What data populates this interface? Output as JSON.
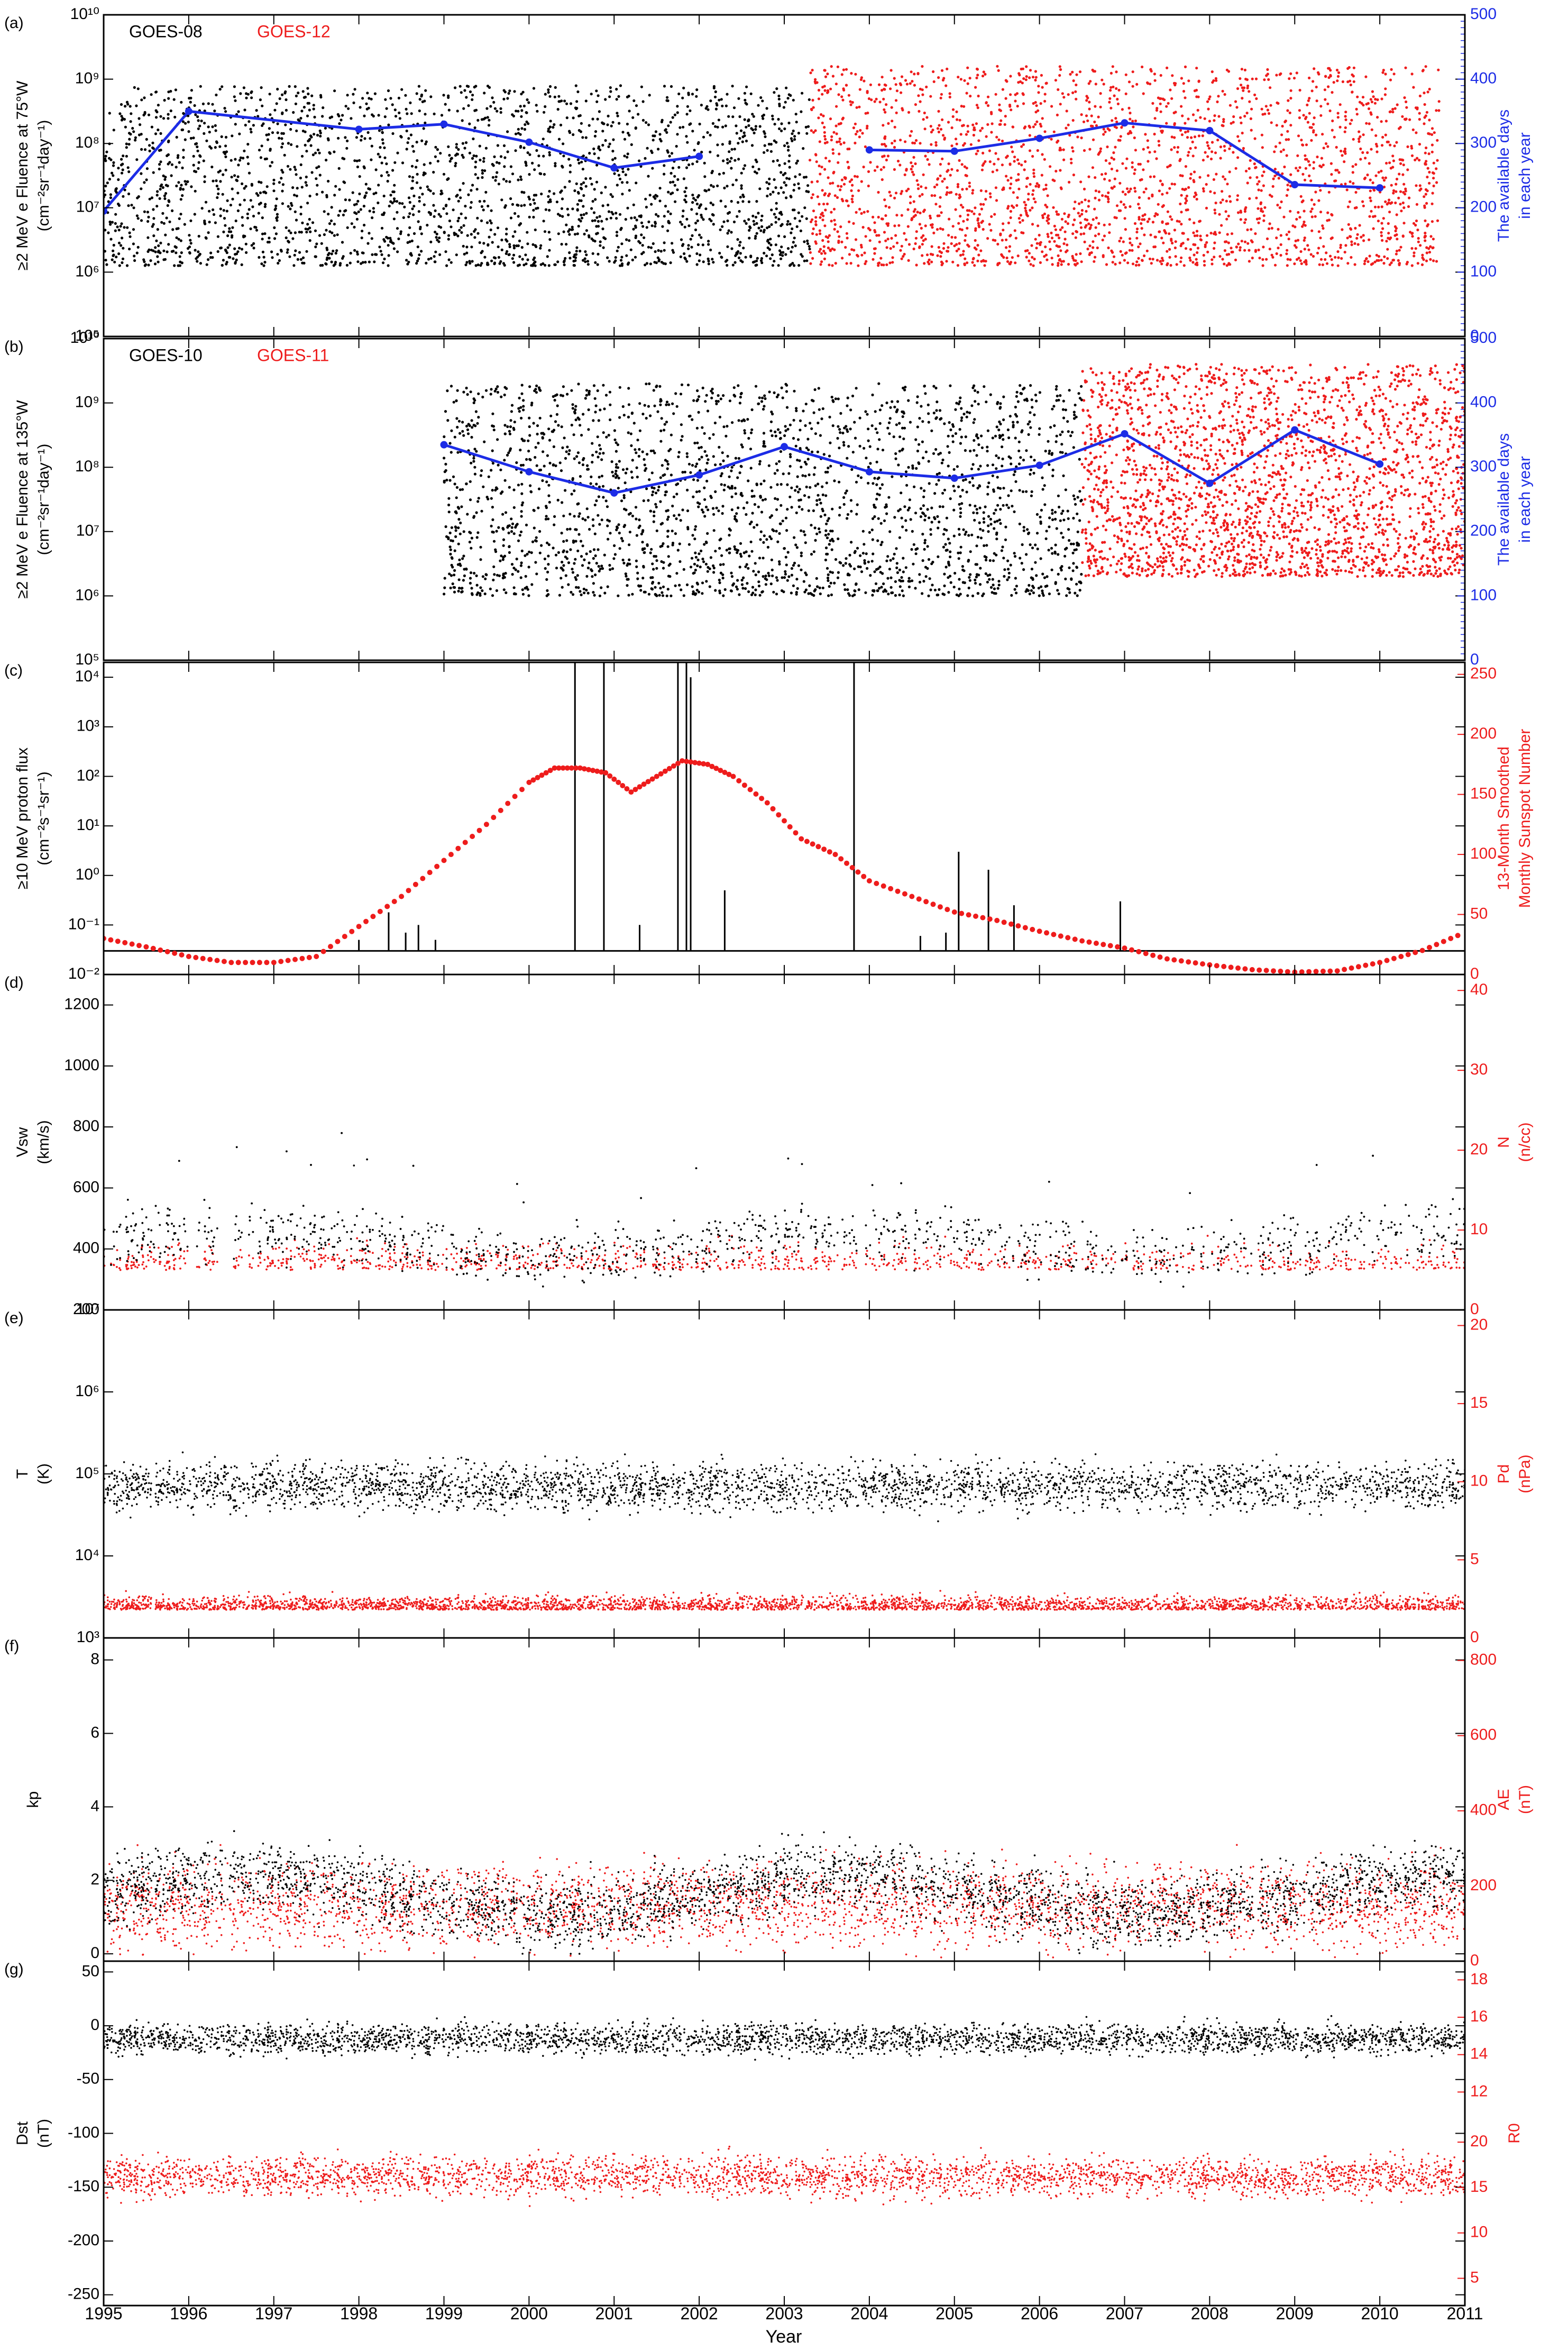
{
  "figure": {
    "x_axis_label": "Year",
    "x_ticks": [
      "1995",
      "1996",
      "1997",
      "1998",
      "1999",
      "2000",
      "2001",
      "2002",
      "2003",
      "2004",
      "2005",
      "2006",
      "2007",
      "2008",
      "2009",
      "2010",
      "2011"
    ],
    "colors": {
      "primary": "#000000",
      "secondary": "#ee1c1c",
      "blue": "#1c2ce6"
    }
  },
  "chart_data": [
    {
      "type": "scatter",
      "panel": "(a)",
      "legend": [
        "GOES-08",
        "GOES-12"
      ],
      "ylabel": [
        "≥2 MeV e Fluence at 75°W",
        "(cm⁻²sr⁻¹day⁻¹)"
      ],
      "ylabel_right": [
        "The available days",
        "in each year"
      ],
      "y_log": true,
      "ylim": [
        100000,
        10000000000
      ],
      "y_ticks": [
        "10⁵",
        "10⁶",
        "10⁷",
        "10⁸",
        "10⁹",
        "10¹⁰"
      ],
      "ylim_right": [
        0,
        500
      ],
      "y_ticks_right": [
        "0",
        "100",
        "200",
        "300",
        "400",
        "500"
      ],
      "series": [
        {
          "name": "GOES-08",
          "color": "#000000",
          "x_range": [
            1995.0,
            2003.3
          ],
          "y_log_range": [
            6.1,
            8.9
          ]
        },
        {
          "name": "GOES-12",
          "color": "#ee1c1c",
          "x_range": [
            2003.3,
            2010.7
          ],
          "y_log_range": [
            6.1,
            9.2
          ]
        },
        {
          "color": "#1c2ce6",
          "axis": "right",
          "x": [
            1995,
            1996,
            1998,
            1999,
            2000,
            2001,
            2002
          ],
          "y": [
            195,
            350,
            322,
            330,
            302,
            262,
            280
          ]
        },
        {
          "color": "#1c2ce6",
          "axis": "right",
          "x": [
            2004,
            2005,
            2006,
            2007,
            2008,
            2009,
            2010
          ],
          "y": [
            290,
            288,
            308,
            332,
            320,
            236,
            231
          ]
        }
      ]
    },
    {
      "type": "scatter",
      "panel": "(b)",
      "legend": [
        "GOES-10",
        "GOES-11"
      ],
      "ylabel": [
        "≥2 MeV e Fluence at 135°W",
        "(cm⁻²sr⁻¹day⁻¹)"
      ],
      "ylabel_right": [
        "The available days",
        "in each year"
      ],
      "y_log": true,
      "ylim": [
        100000,
        10000000000
      ],
      "y_ticks": [
        "10⁵",
        "10⁶",
        "10⁷",
        "10⁸",
        "10⁹",
        "10¹⁰"
      ],
      "ylim_right": [
        0,
        500
      ],
      "y_ticks_right": [
        "0",
        "100",
        "200",
        "300",
        "400",
        "500"
      ],
      "series": [
        {
          "name": "GOES-10",
          "color": "#000000",
          "x_range": [
            1999.0,
            2006.5
          ],
          "y_log_range": [
            6.0,
            9.3
          ]
        },
        {
          "name": "GOES-11",
          "color": "#ee1c1c",
          "x_range": [
            2006.5,
            2011.0
          ],
          "y_log_range": [
            6.3,
            9.6
          ]
        },
        {
          "color": "#1c2ce6",
          "axis": "right",
          "x": [
            1999,
            2000,
            2001,
            2002,
            2003,
            2004,
            2005,
            2006,
            2007,
            2008,
            2009,
            2010
          ],
          "y": [
            335,
            293,
            260,
            288,
            332,
            293,
            283,
            303,
            352,
            275,
            358,
            305
          ]
        }
      ]
    },
    {
      "type": "line",
      "panel": "(c)",
      "ylabel": [
        "≥10 MeV proton flux",
        "(cm⁻²s⁻¹sr⁻¹)"
      ],
      "ylabel_right": [
        "13-Month Smoothed",
        "Monthly Sunspot Number"
      ],
      "y_log": true,
      "ylim": [
        0.01,
        20000
      ],
      "y_ticks": [
        "10⁻²",
        "10⁻¹",
        "10⁰",
        "10¹",
        "10²",
        "10³",
        "10⁴"
      ],
      "ylim_right": [
        0,
        260
      ],
      "y_ticks_right": [
        "0",
        "50",
        "100",
        "150",
        "200",
        "250"
      ],
      "series": [
        {
          "color": "#000000",
          "baseline": 0.03,
          "events_x": [
            1998.0,
            1998.35,
            1998.55,
            1998.7,
            1998.9,
            2000.54,
            2000.88,
            2001.3,
            2001.75,
            2001.85,
            2001.9,
            2002.3,
            2003.82,
            2004.6,
            2004.9,
            2005.05,
            2005.4,
            2005.7,
            2006.95
          ],
          "events_y": [
            0.05,
            0.18,
            0.07,
            0.1,
            0.05,
            20000,
            20000,
            0.1,
            20000,
            20000,
            10000,
            0.5,
            20000,
            0.06,
            0.07,
            3,
            1.3,
            0.25,
            0.3
          ]
        },
        {
          "color": "#ee1c1c",
          "axis": "right",
          "x": [
            1995.0,
            1995.5,
            1996.0,
            1996.5,
            1997.0,
            1997.5,
            1998.0,
            1998.5,
            1999.0,
            1999.5,
            2000.0,
            2000.3,
            2000.6,
            2000.9,
            2001.2,
            2001.5,
            2001.8,
            2002.1,
            2002.4,
            2002.8,
            2003.2,
            2003.6,
            2004.0,
            2004.5,
            2005.0,
            2005.5,
            2006.0,
            2006.5,
            2007.0,
            2007.5,
            2008.0,
            2008.5,
            2009.0,
            2009.5,
            2010.0,
            2010.5,
            2011.0
          ],
          "y": [
            30,
            23,
            15,
            10,
            10,
            15,
            40,
            65,
            95,
            125,
            160,
            172,
            172,
            168,
            152,
            165,
            178,
            175,
            165,
            143,
            113,
            100,
            78,
            65,
            52,
            45,
            36,
            28,
            22,
            13,
            8,
            4,
            2,
            3,
            10,
            20,
            35
          ]
        }
      ]
    },
    {
      "type": "scatter",
      "panel": "(d)",
      "ylabel": [
        "Vsw",
        "(km/s)"
      ],
      "ylabel_right": [
        "N",
        "(n/cc)"
      ],
      "ylim": [
        200,
        1300
      ],
      "y_ticks": [
        "200",
        "400",
        "600",
        "800",
        "1000",
        "1200"
      ],
      "ylim_right": [
        0,
        42
      ],
      "y_ticks_right": [
        "0",
        "10",
        "20",
        "30",
        "40"
      ],
      "series": [
        {
          "color": "#000000",
          "y_typical_range": [
            280,
            650
          ]
        },
        {
          "color": "#ee1c1c",
          "axis": "right",
          "y_typical_range": [
            2,
            14
          ]
        }
      ]
    },
    {
      "type": "scatter",
      "panel": "(e)",
      "ylabel": [
        "T",
        "(K)"
      ],
      "ylabel_right": [
        "Pd",
        "(nPa)"
      ],
      "y_log": true,
      "ylim": [
        1000,
        10000000
      ],
      "y_ticks": [
        "10³",
        "10⁴",
        "10⁵",
        "10⁶",
        "10⁷"
      ],
      "ylim_right": [
        0,
        21
      ],
      "y_ticks_right": [
        "0",
        "5",
        "10",
        "15",
        "20"
      ],
      "series": [
        {
          "color": "#000000",
          "y_log_typical_range": [
            4.2,
            5.4
          ]
        },
        {
          "color": "#ee1c1c",
          "axis": "right",
          "y_typical_range": [
            0.5,
            4
          ]
        }
      ]
    },
    {
      "type": "scatter",
      "panel": "(f)",
      "ylabel": [
        "kp"
      ],
      "ylabel_right": [
        "AE",
        "(nT)"
      ],
      "ylim": [
        -0.2,
        8.6
      ],
      "y_ticks": [
        "0",
        "2",
        "4",
        "6",
        "8"
      ],
      "ylim_right": [
        0,
        860
      ],
      "y_ticks_right": [
        "0",
        "200",
        "400",
        "600",
        "800"
      ],
      "series": [
        {
          "color": "#000000",
          "y_typical_range": [
            0.3,
            4
          ]
        },
        {
          "color": "#ee1c1c",
          "axis": "right",
          "y_typical_range": [
            20,
            350
          ]
        }
      ]
    },
    {
      "type": "scatter",
      "panel": "(g)",
      "ylabel": [
        "Dst",
        "(nT)"
      ],
      "ylabel_right": [
        "R0"
      ],
      "ylim": [
        -260,
        60
      ],
      "y_ticks": [
        "-250",
        "-200",
        "-150",
        "-100",
        "-50",
        "0",
        "50"
      ],
      "ylim_right_upper": [
        12,
        19
      ],
      "y_ticks_right_upper": [
        "12",
        "14",
        "16",
        "18"
      ],
      "y_ticks_right_lower": [
        "5",
        "10",
        "15",
        "20"
      ],
      "series": [
        {
          "color": "#000000",
          "y_typical_range": [
            -40,
            15
          ]
        },
        {
          "color": "#ee1c1c",
          "axis": "right",
          "y_typical_range": [
            12,
            22
          ]
        }
      ]
    }
  ]
}
